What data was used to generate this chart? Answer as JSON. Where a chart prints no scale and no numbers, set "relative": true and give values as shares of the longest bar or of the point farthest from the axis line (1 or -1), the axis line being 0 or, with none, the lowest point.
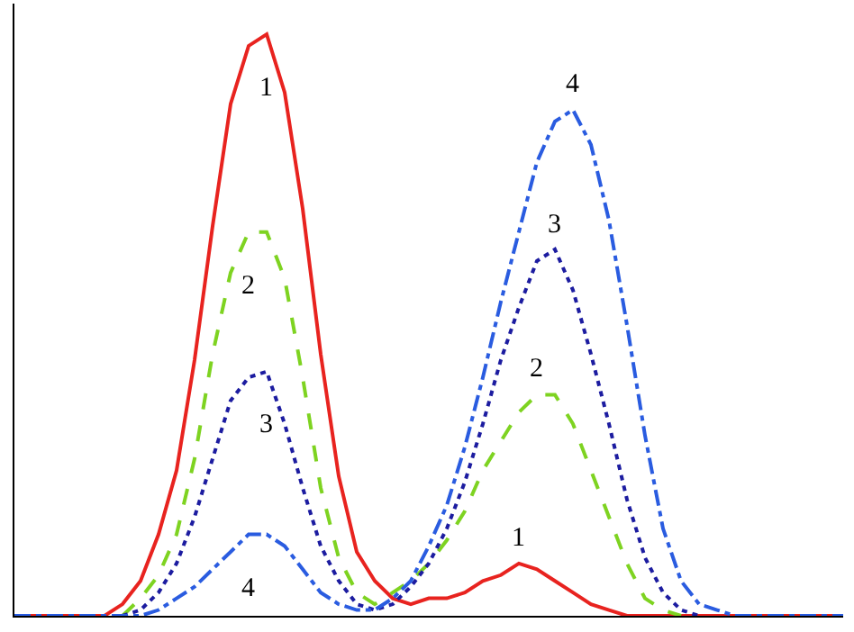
{
  "chart_data": {
    "type": "line",
    "relative": true,
    "grid": false,
    "legend": false,
    "categories": [
      null,
      null,
      null,
      null,
      null,
      null,
      null,
      null,
      null,
      null,
      null,
      null,
      null,
      null,
      null,
      null,
      null,
      null,
      null,
      null,
      null,
      null,
      null,
      null,
      null,
      null,
      null,
      null,
      null,
      null,
      null,
      null,
      null,
      null,
      null,
      null,
      null,
      null,
      null,
      null,
      null,
      null,
      null,
      null,
      null,
      null,
      null
    ],
    "series": [
      {
        "name": "1",
        "color": "#e8231f",
        "line_style": "solid",
        "values": [
          0,
          0,
          0,
          0,
          0,
          0,
          0.02,
          0.06,
          0.14,
          0.25,
          0.44,
          0.67,
          0.88,
          0.98,
          1.0,
          0.9,
          0.7,
          0.45,
          0.24,
          0.11,
          0.06,
          0.03,
          0.02,
          0.03,
          0.03,
          0.04,
          0.06,
          0.07,
          0.09,
          0.08,
          0.06,
          0.04,
          0.02,
          0.01,
          0,
          0,
          0,
          0,
          0,
          0,
          0,
          0,
          0,
          0,
          0,
          0,
          0
        ]
      },
      {
        "name": "2",
        "color": "#7ed321",
        "line_style": "dashed",
        "values": [
          null,
          null,
          null,
          null,
          null,
          null,
          0,
          0.03,
          0.07,
          0.14,
          0.27,
          0.45,
          0.59,
          0.66,
          0.66,
          0.58,
          0.41,
          0.22,
          0.1,
          0.04,
          0.02,
          0.04,
          0.06,
          0.09,
          0.13,
          0.18,
          0.25,
          0.3,
          0.35,
          0.38,
          0.38,
          0.33,
          0.25,
          0.17,
          0.09,
          0.03,
          0.01,
          0,
          null,
          null,
          null,
          null,
          null,
          null,
          null,
          null,
          null
        ]
      },
      {
        "name": "3",
        "color": "#1c1ca0",
        "line_style": "dotted",
        "values": [
          null,
          null,
          null,
          null,
          null,
          null,
          0,
          0.01,
          0.04,
          0.09,
          0.17,
          0.27,
          0.37,
          0.41,
          0.42,
          0.33,
          0.22,
          0.12,
          0.06,
          0.02,
          0.01,
          0.02,
          0.05,
          0.09,
          0.15,
          0.23,
          0.33,
          0.44,
          0.53,
          0.61,
          0.63,
          0.56,
          0.45,
          0.33,
          0.2,
          0.1,
          0.04,
          0.01,
          0,
          null,
          null,
          null,
          null,
          null,
          null,
          null,
          null
        ]
      },
      {
        "name": "4",
        "color": "#2a5ce0",
        "line_style": "dashdot",
        "values": [
          0,
          0,
          0,
          0,
          0,
          0,
          0,
          0,
          0.01,
          0.03,
          0.05,
          0.08,
          0.11,
          0.14,
          0.14,
          0.12,
          0.08,
          0.04,
          0.02,
          0.01,
          0.01,
          0.03,
          0.06,
          0.12,
          0.19,
          0.29,
          0.41,
          0.54,
          0.66,
          0.78,
          0.85,
          0.87,
          0.81,
          0.68,
          0.5,
          0.31,
          0.15,
          0.06,
          0.02,
          0.01,
          0,
          0,
          0,
          0,
          0,
          0,
          0
        ]
      }
    ]
  }
}
